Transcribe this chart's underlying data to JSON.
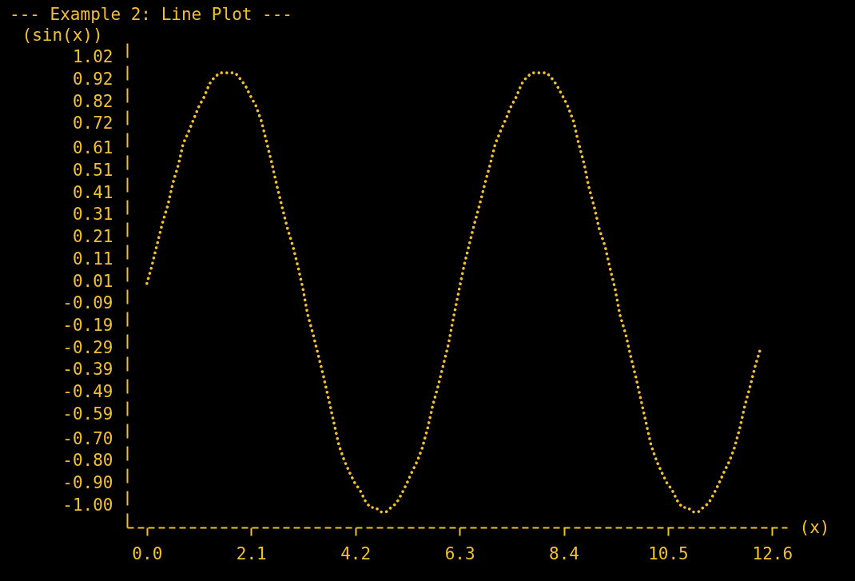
{
  "chart_data": {
    "type": "line",
    "title": "--- Example 2: Line Plot ---",
    "xlabel": "(x)",
    "ylabel": "(sin(x))",
    "x": [
      0.0,
      0.1,
      0.21,
      0.31,
      0.43,
      0.52,
      0.64,
      0.73,
      0.85,
      0.94,
      1.05,
      1.15,
      1.26,
      1.36,
      1.47,
      1.56,
      1.68,
      1.78,
      1.89,
      1.99,
      2.1,
      2.2,
      2.31,
      2.41,
      2.52,
      2.62,
      2.73,
      2.83,
      2.94,
      3.04,
      3.15,
      3.24,
      3.35,
      3.45,
      3.56,
      3.66,
      3.77,
      3.87,
      3.98,
      4.08,
      4.19,
      4.29,
      4.4,
      4.5,
      4.61,
      4.71,
      4.82,
      4.92,
      5.03,
      5.13,
      5.24,
      5.34,
      5.45,
      5.55,
      5.66,
      5.76,
      5.87,
      5.97,
      6.08,
      6.18,
      6.29,
      6.39,
      6.5,
      6.6,
      6.71,
      6.81,
      6.92,
      7.02,
      7.13,
      7.23,
      7.34,
      7.44,
      7.55,
      7.65,
      7.76,
      7.85,
      7.97,
      8.06,
      8.18,
      8.27,
      8.39,
      8.48,
      8.6,
      8.69,
      8.81,
      8.9,
      9.02,
      9.11,
      9.23,
      9.32,
      9.44,
      9.53,
      9.65,
      9.74,
      9.85,
      9.95,
      10.06,
      10.16,
      10.27,
      10.37,
      10.48,
      10.58,
      10.69,
      10.79,
      10.9,
      11.0,
      11.11,
      11.21,
      11.32,
      11.42,
      11.53,
      11.63,
      11.74,
      11.84,
      11.95,
      12.05,
      12.16,
      12.26,
      12.37
    ],
    "values": [
      0.0,
      0.08,
      0.18,
      0.27,
      0.36,
      0.45,
      0.54,
      0.63,
      0.69,
      0.74,
      0.8,
      0.84,
      0.9,
      0.93,
      0.95,
      0.95,
      0.95,
      0.95,
      0.92,
      0.89,
      0.84,
      0.8,
      0.73,
      0.64,
      0.54,
      0.44,
      0.34,
      0.25,
      0.17,
      0.08,
      -0.03,
      -0.14,
      -0.23,
      -0.32,
      -0.42,
      -0.52,
      -0.63,
      -0.73,
      -0.8,
      -0.85,
      -0.9,
      -0.93,
      -0.98,
      -1.01,
      -1.01,
      -1.03,
      -1.03,
      -1.01,
      -0.99,
      -0.95,
      -0.9,
      -0.85,
      -0.8,
      -0.74,
      -0.65,
      -0.55,
      -0.46,
      -0.37,
      -0.27,
      -0.15,
      -0.03,
      0.08,
      0.18,
      0.27,
      0.36,
      0.45,
      0.54,
      0.63,
      0.69,
      0.74,
      0.8,
      0.84,
      0.9,
      0.93,
      0.95,
      0.95,
      0.95,
      0.95,
      0.92,
      0.89,
      0.84,
      0.8,
      0.73,
      0.64,
      0.54,
      0.44,
      0.34,
      0.25,
      0.17,
      0.08,
      -0.03,
      -0.14,
      -0.23,
      -0.32,
      -0.42,
      -0.52,
      -0.63,
      -0.73,
      -0.8,
      -0.85,
      -0.9,
      -0.93,
      -0.98,
      -1.01,
      -1.01,
      -1.03,
      -1.03,
      -1.01,
      -0.99,
      -0.95,
      -0.9,
      -0.85,
      -0.8,
      -0.74,
      -0.65,
      -0.55,
      -0.46,
      -0.37,
      -0.29
    ],
    "color": "#f0c030",
    "line_style": "dotted",
    "xlim": [
      -0.4,
      12.9
    ],
    "ylim": [
      -1.1,
      1.12
    ],
    "xticks": [
      {
        "value": 0,
        "label": "0.0"
      },
      2.1,
      4.2,
      6.3,
      8.4,
      10.5,
      12.6
    ],
    "yticks": [
      1.02,
      0.92,
      0.82,
      0.72,
      0.61,
      0.51,
      0.41,
      0.31,
      0.21,
      0.11,
      0.01,
      -0.09,
      -0.19,
      -0.29,
      -0.39,
      -0.49,
      -0.59,
      {
        "value": -0.7,
        "label": "-0.70"
      },
      {
        "value": -0.8,
        "label": "-0.80"
      },
      {
        "value": -0.9,
        "label": "-0.90"
      },
      {
        "value": -1,
        "label": "-1.00"
      }
    ]
  }
}
